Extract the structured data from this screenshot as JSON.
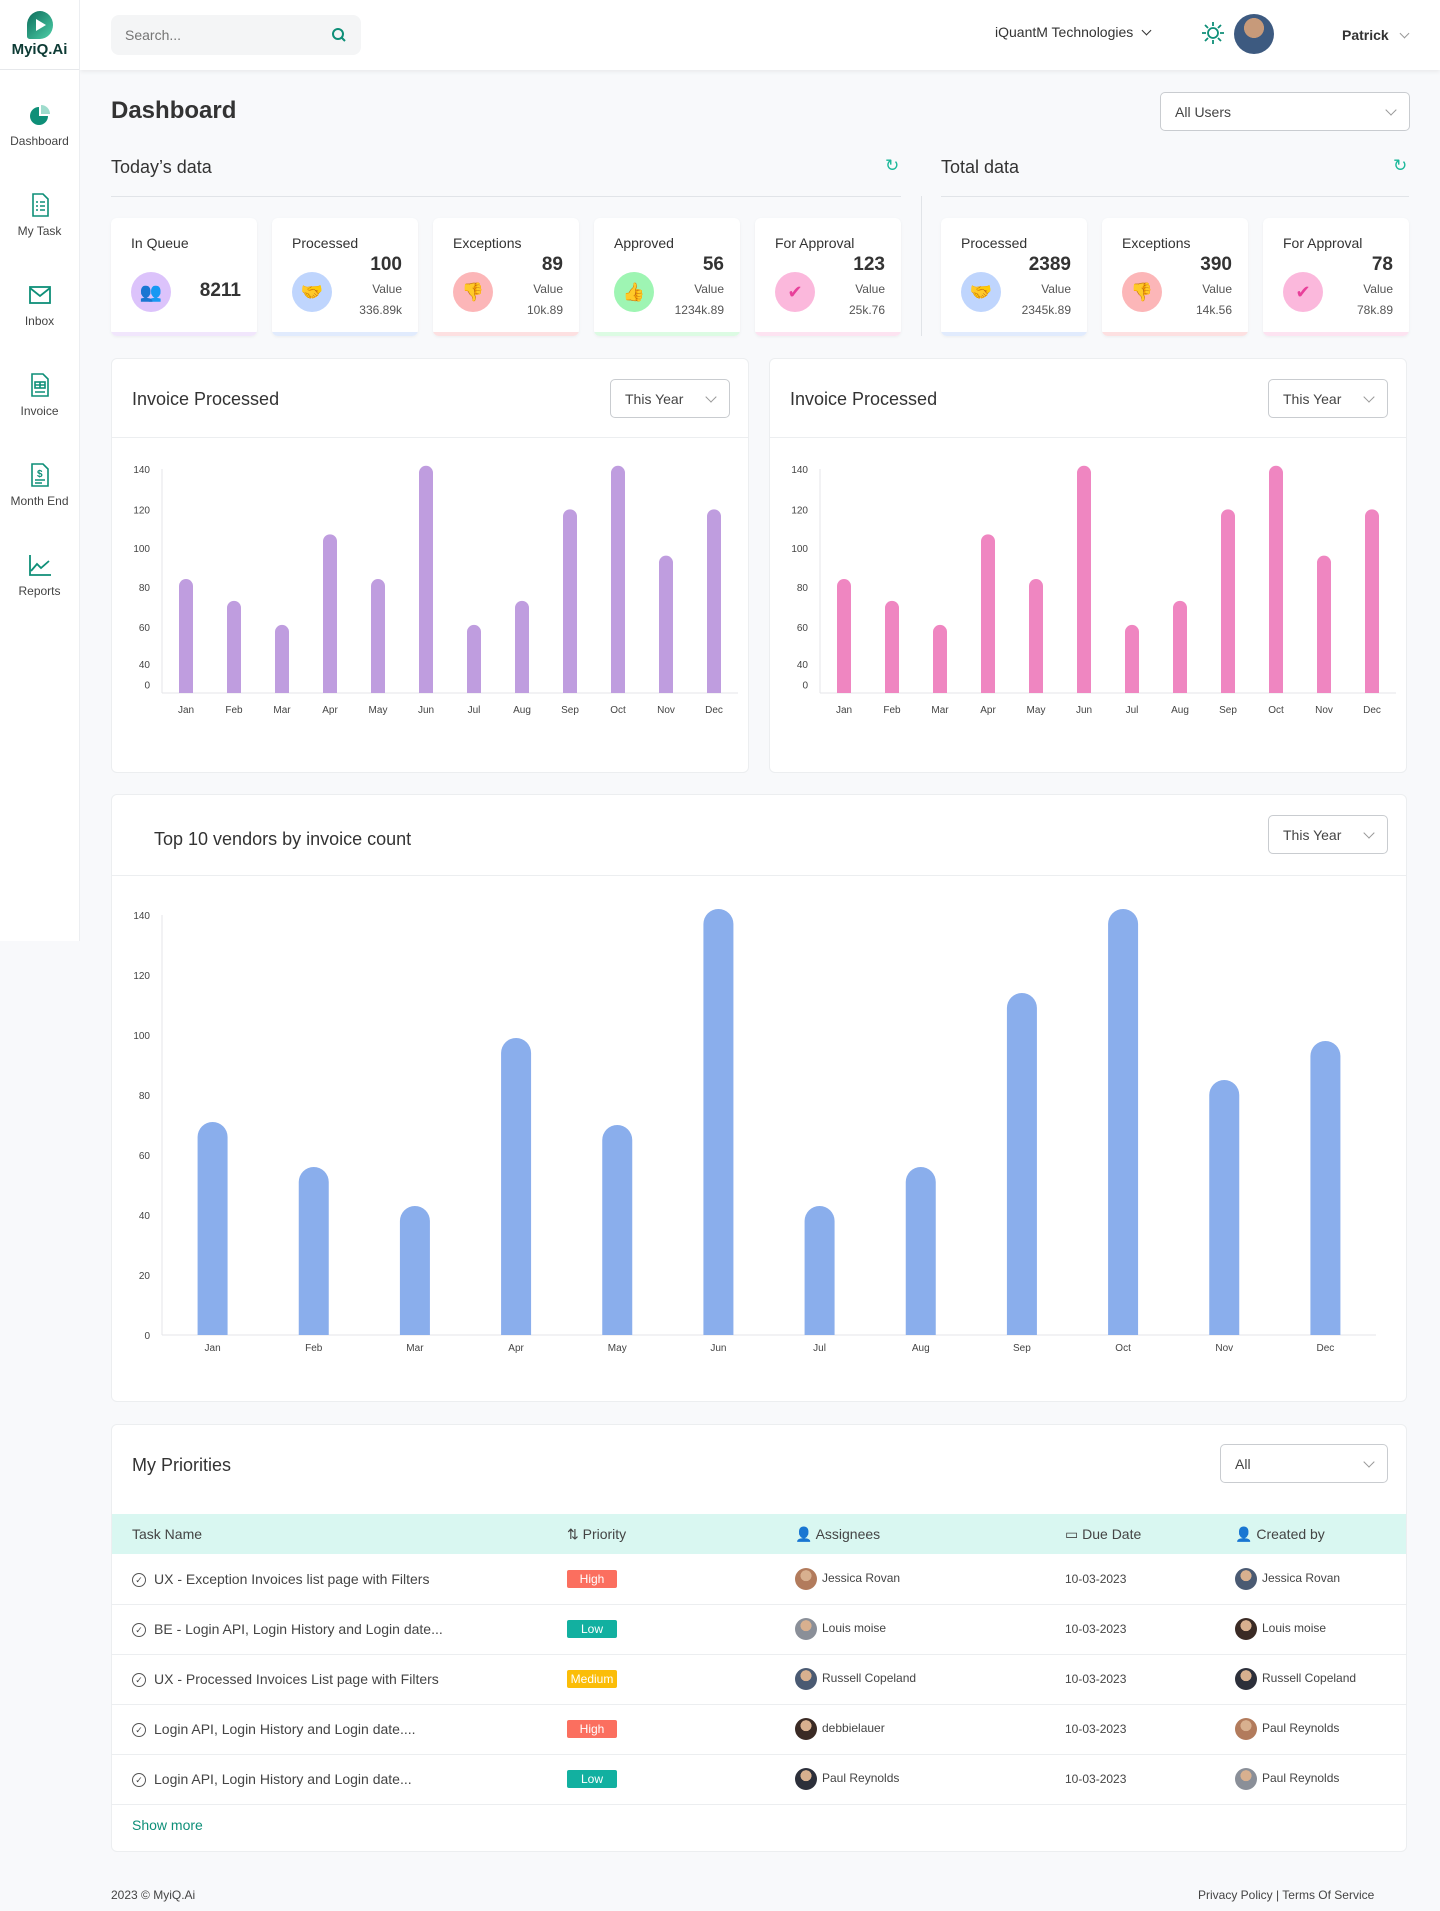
{
  "app": {
    "logo_text": "MyiQ.Ai"
  },
  "sidebar": {
    "items": [
      {
        "label": "Dashboard",
        "icon": "pie-chart-icon"
      },
      {
        "label": "My Task",
        "icon": "task-list-icon"
      },
      {
        "label": "Inbox",
        "icon": "mail-icon"
      },
      {
        "label": "Invoice",
        "icon": "invoice-icon"
      },
      {
        "label": "Month End",
        "icon": "dollar-document-icon"
      },
      {
        "label": "Reports",
        "icon": "line-chart-icon"
      }
    ]
  },
  "header": {
    "search_placeholder": "Search...",
    "company": "iQuantM Technologies",
    "user": "Patrick"
  },
  "page": {
    "title": "Dashboard",
    "user_filter": "All Users"
  },
  "today": {
    "title": "Today’s data",
    "cards": [
      {
        "label": "In Queue",
        "count": "8211"
      },
      {
        "label": "Processed",
        "count": "100",
        "value_label": "Value",
        "value": "336.89k"
      },
      {
        "label": "Exceptions",
        "count": "89",
        "value_label": "Value",
        "value": "10k.89"
      },
      {
        "label": "Approved",
        "count": "56",
        "value_label": "Value",
        "value": "1234k.89"
      },
      {
        "label": "For Approval",
        "count": "123",
        "value_label": "Value",
        "value": "25k.76"
      }
    ]
  },
  "total": {
    "title": "Total data",
    "cards": [
      {
        "label": "Processed",
        "count": "2389",
        "value_label": "Value",
        "value": "2345k.89"
      },
      {
        "label": "Exceptions",
        "count": "390",
        "value_label": "Value",
        "value": "14k.56"
      },
      {
        "label": "For Approval",
        "count": "78",
        "value_label": "Value",
        "value": "78k.89"
      }
    ]
  },
  "colors": {
    "accent": "#0e8f78",
    "purple_bar": "#bf9ddf",
    "pink_bar": "#ef86c1",
    "blue_bar": "#8aaeec",
    "high": "#fb6f5f",
    "low": "#12b0a0",
    "medium": "#fbbd08"
  },
  "chart_data": [
    {
      "type": "bar",
      "title": "Invoice Processed",
      "filter": "This Year",
      "categories": [
        "Jan",
        "Feb",
        "Mar",
        "Apr",
        "May",
        "Jun",
        "Jul",
        "Aug",
        "Sep",
        "Oct",
        "Nov",
        "Dec"
      ],
      "values": [
        84,
        73,
        61,
        107,
        84,
        142,
        61,
        73,
        120,
        142,
        96,
        120
      ],
      "yticks": [
        0,
        40,
        60,
        80,
        100,
        120,
        140
      ],
      "color": "#bf9ddf"
    },
    {
      "type": "bar",
      "title": "Invoice Processed",
      "filter": "This Year",
      "categories": [
        "Jan",
        "Feb",
        "Mar",
        "Apr",
        "May",
        "Jun",
        "Jul",
        "Aug",
        "Sep",
        "Oct",
        "Nov",
        "Dec"
      ],
      "values": [
        84,
        73,
        61,
        107,
        84,
        142,
        61,
        73,
        120,
        142,
        96,
        120
      ],
      "yticks": [
        0,
        40,
        60,
        80,
        100,
        120,
        140
      ],
      "color": "#ef86c1"
    },
    {
      "type": "bar",
      "title": "Top 10 vendors by invoice count",
      "filter": "This Year",
      "categories": [
        "Jan",
        "Feb",
        "Mar",
        "Apr",
        "May",
        "Jun",
        "Jul",
        "Aug",
        "Sep",
        "Oct",
        "Nov",
        "Dec"
      ],
      "values": [
        71,
        56,
        43,
        99,
        70,
        142,
        43,
        56,
        114,
        142,
        85,
        98
      ],
      "yticks": [
        0,
        20,
        40,
        60,
        80,
        100,
        120,
        140
      ],
      "color": "#8aaeec"
    }
  ],
  "priorities": {
    "title": "My Priorities",
    "filter": "All",
    "show_more": "Show more",
    "columns": [
      "Task Name",
      "Priority",
      "Assignees",
      "Due Date",
      "Created by"
    ],
    "rows": [
      {
        "task": "UX - Exception Invoices list page with Filters",
        "priority": "High",
        "assignee": "Jessica Rovan",
        "due": "10-03-2023",
        "created_by": "Jessica Rovan"
      },
      {
        "task": "BE - Login API, Login History and Login date...",
        "priority": "Low",
        "assignee": "Louis moise",
        "due": "10-03-2023",
        "created_by": "Louis moise"
      },
      {
        "task": "UX - Processed Invoices List page with Filters",
        "priority": "Medium",
        "assignee": "Russell Copeland",
        "due": "10-03-2023",
        "created_by": "Russell Copeland"
      },
      {
        "task": "Login API, Login History and Login date....",
        "priority": "High",
        "assignee": "debbielauer",
        "due": "10-03-2023",
        "created_by": "Paul Reynolds"
      },
      {
        "task": "Login API, Login History and Login date...",
        "priority": "Low",
        "assignee": "Paul Reynolds",
        "due": "10-03-2023",
        "created_by": "Paul Reynolds"
      }
    ]
  },
  "footer": {
    "copyright": "2023 © MyiQ.Ai",
    "privacy": "Privacy Policy",
    "separator": "|",
    "terms": "Terms Of Service"
  }
}
